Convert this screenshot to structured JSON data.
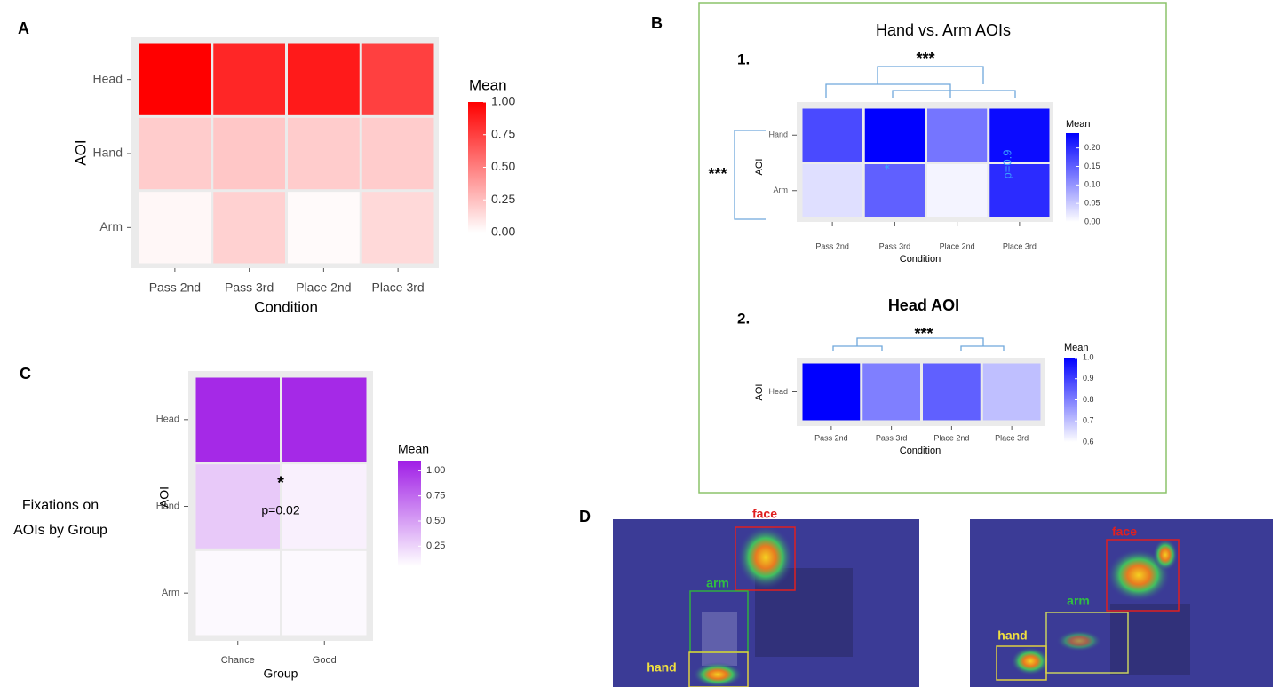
{
  "panel_labels": [
    "A",
    "B",
    "C",
    "D"
  ],
  "side_label": [
    "Fixations on",
    "AOIs by Group"
  ],
  "panel_d_labels": [
    [
      "face",
      "arm",
      "hand"
    ],
    [
      "face",
      "arm",
      "hand"
    ]
  ],
  "chart_data": [
    {
      "type": "heatmap",
      "x_label": "Condition",
      "y_label": "AOI",
      "categories": [
        "Pass 2nd",
        "Pass 3rd",
        "Place 2nd",
        "Place 3rd"
      ],
      "rows": [
        "Head",
        "Hand",
        "Arm"
      ],
      "values": [
        [
          1.0,
          0.85,
          0.9,
          0.75
        ],
        [
          0.2,
          0.22,
          0.2,
          0.2
        ],
        [
          0.03,
          0.18,
          0.02,
          0.15
        ]
      ],
      "legend_title": "Mean",
      "colors": [
        "#ffffff",
        "#ff0000"
      ],
      "clim": [
        0,
        1
      ],
      "cticks": [
        {
          "value": 0,
          "label": "0.00"
        },
        {
          "value": 0.25,
          "label": "0.25"
        },
        {
          "value": 0.5,
          "label": "0.50"
        },
        {
          "value": 0.75,
          "label": "0.75"
        },
        {
          "value": 1,
          "label": "1.00"
        }
      ]
    },
    {
      "type": "heatmap",
      "title": "Hand vs. Arm AOIs",
      "label": "1.",
      "x_label": "Condition",
      "y_label": "AOI",
      "categories": [
        "Pass 2nd",
        "Pass 3rd",
        "Place 2nd",
        "Place 3rd"
      ],
      "rows": [
        "Hand",
        "Arm"
      ],
      "values": [
        [
          0.17,
          0.24,
          0.13,
          0.23
        ],
        [
          0.03,
          0.15,
          0.01,
          0.2
        ]
      ],
      "legend_title": "Mean",
      "colors": [
        "#ffffff",
        "#0000ff"
      ],
      "clim": [
        0,
        0.24
      ],
      "cticks": [
        {
          "value": 0,
          "label": "0.00"
        },
        0.05,
        {
          "value": 0.1,
          "label": "0.10"
        },
        0.15,
        {
          "value": 0.2,
          "label": "0.20"
        }
      ],
      "annotations": [
        "***",
        "***",
        "*",
        "p=0.9"
      ]
    },
    {
      "type": "heatmap",
      "title": "Head AOI",
      "label": "2.",
      "x_label": "Condition",
      "y_label": "AOI",
      "categories": [
        "Pass 2nd",
        "Pass 3rd",
        "Place 2nd",
        "Place 3rd"
      ],
      "rows": [
        "Head"
      ],
      "values": [
        [
          1.0,
          0.8,
          0.85,
          0.7
        ]
      ],
      "legend_title": "Mean",
      "colors": [
        "#ffffff",
        "#0000ff"
      ],
      "clim": [
        0.6,
        1.0
      ],
      "cticks": [
        0.6,
        0.7,
        0.8,
        0.9,
        {
          "value": 1,
          "label": "1.0"
        }
      ],
      "annotations": [
        "***"
      ]
    },
    {
      "type": "heatmap",
      "x_label": "Group",
      "y_label": "AOI",
      "categories": [
        "Chance",
        "Good"
      ],
      "rows": [
        "Head",
        "Hand",
        "Arm"
      ],
      "values": [
        [
          1.05,
          1.05
        ],
        [
          0.3,
          0.12
        ],
        [
          0.08,
          0.08
        ]
      ],
      "legend_title": "Mean",
      "colors": [
        "#ffffff",
        "#a01ee6"
      ],
      "clim": [
        0.05,
        1.1
      ],
      "cticks": [
        0.25,
        {
          "value": 0.5,
          "label": "0.50"
        },
        0.75,
        {
          "value": 1,
          "label": "1.00"
        }
      ],
      "annotations": [
        "*",
        "p=0.02"
      ]
    }
  ]
}
